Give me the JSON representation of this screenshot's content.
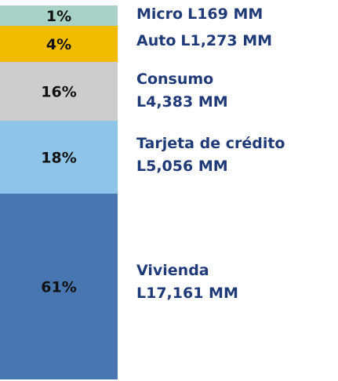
{
  "chart_data": {
    "type": "bar",
    "subtype": "stacked-100",
    "categories": [
      "Micro",
      "Auto",
      "Consumo",
      "Tarjeta de crédito",
      "Vivienda"
    ],
    "values": [
      169,
      1273,
      4383,
      5056,
      17161
    ],
    "percent_labels": [
      "1%",
      "4%",
      "16%",
      "18%",
      "61%"
    ],
    "value_labels": [
      "L169 MM",
      "L1,273 MM",
      "L4,383 MM",
      "L5,056 MM",
      "L17,161 MM"
    ],
    "colors": [
      "#a9d2c7",
      "#f1bc00",
      "#cdcdcd",
      "#8fc4e9",
      "#4876b0"
    ],
    "label_color": "#1f3a78",
    "stack_order": "top-to-bottom",
    "legend": "right"
  }
}
